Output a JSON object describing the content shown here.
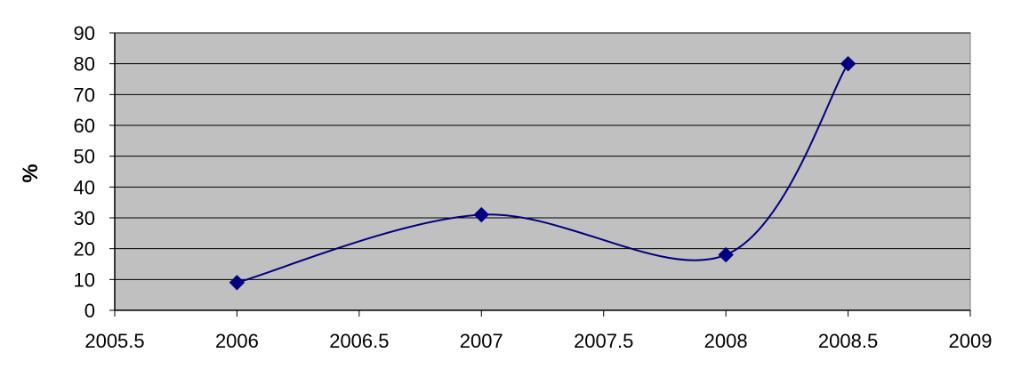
{
  "chart_data": {
    "type": "line",
    "title": "",
    "xlabel": "",
    "ylabel": "%",
    "xlim": [
      2005.5,
      2009
    ],
    "ylim": [
      0,
      90
    ],
    "x_ticks": [
      "2005.5",
      "2006",
      "2006.5",
      "2007",
      "2007.5",
      "2008",
      "2008.5",
      "2009"
    ],
    "y_ticks": [
      "0",
      "10",
      "20",
      "30",
      "40",
      "50",
      "60",
      "70",
      "80",
      "90"
    ],
    "grid": "horizontal",
    "plot_background": "#c0c0c0",
    "line_color": "#000080",
    "marker": "diamond",
    "series": [
      {
        "x": [
          2006,
          2007,
          2008,
          2008.5
        ],
        "values": [
          9,
          31,
          18,
          80
        ]
      }
    ]
  }
}
